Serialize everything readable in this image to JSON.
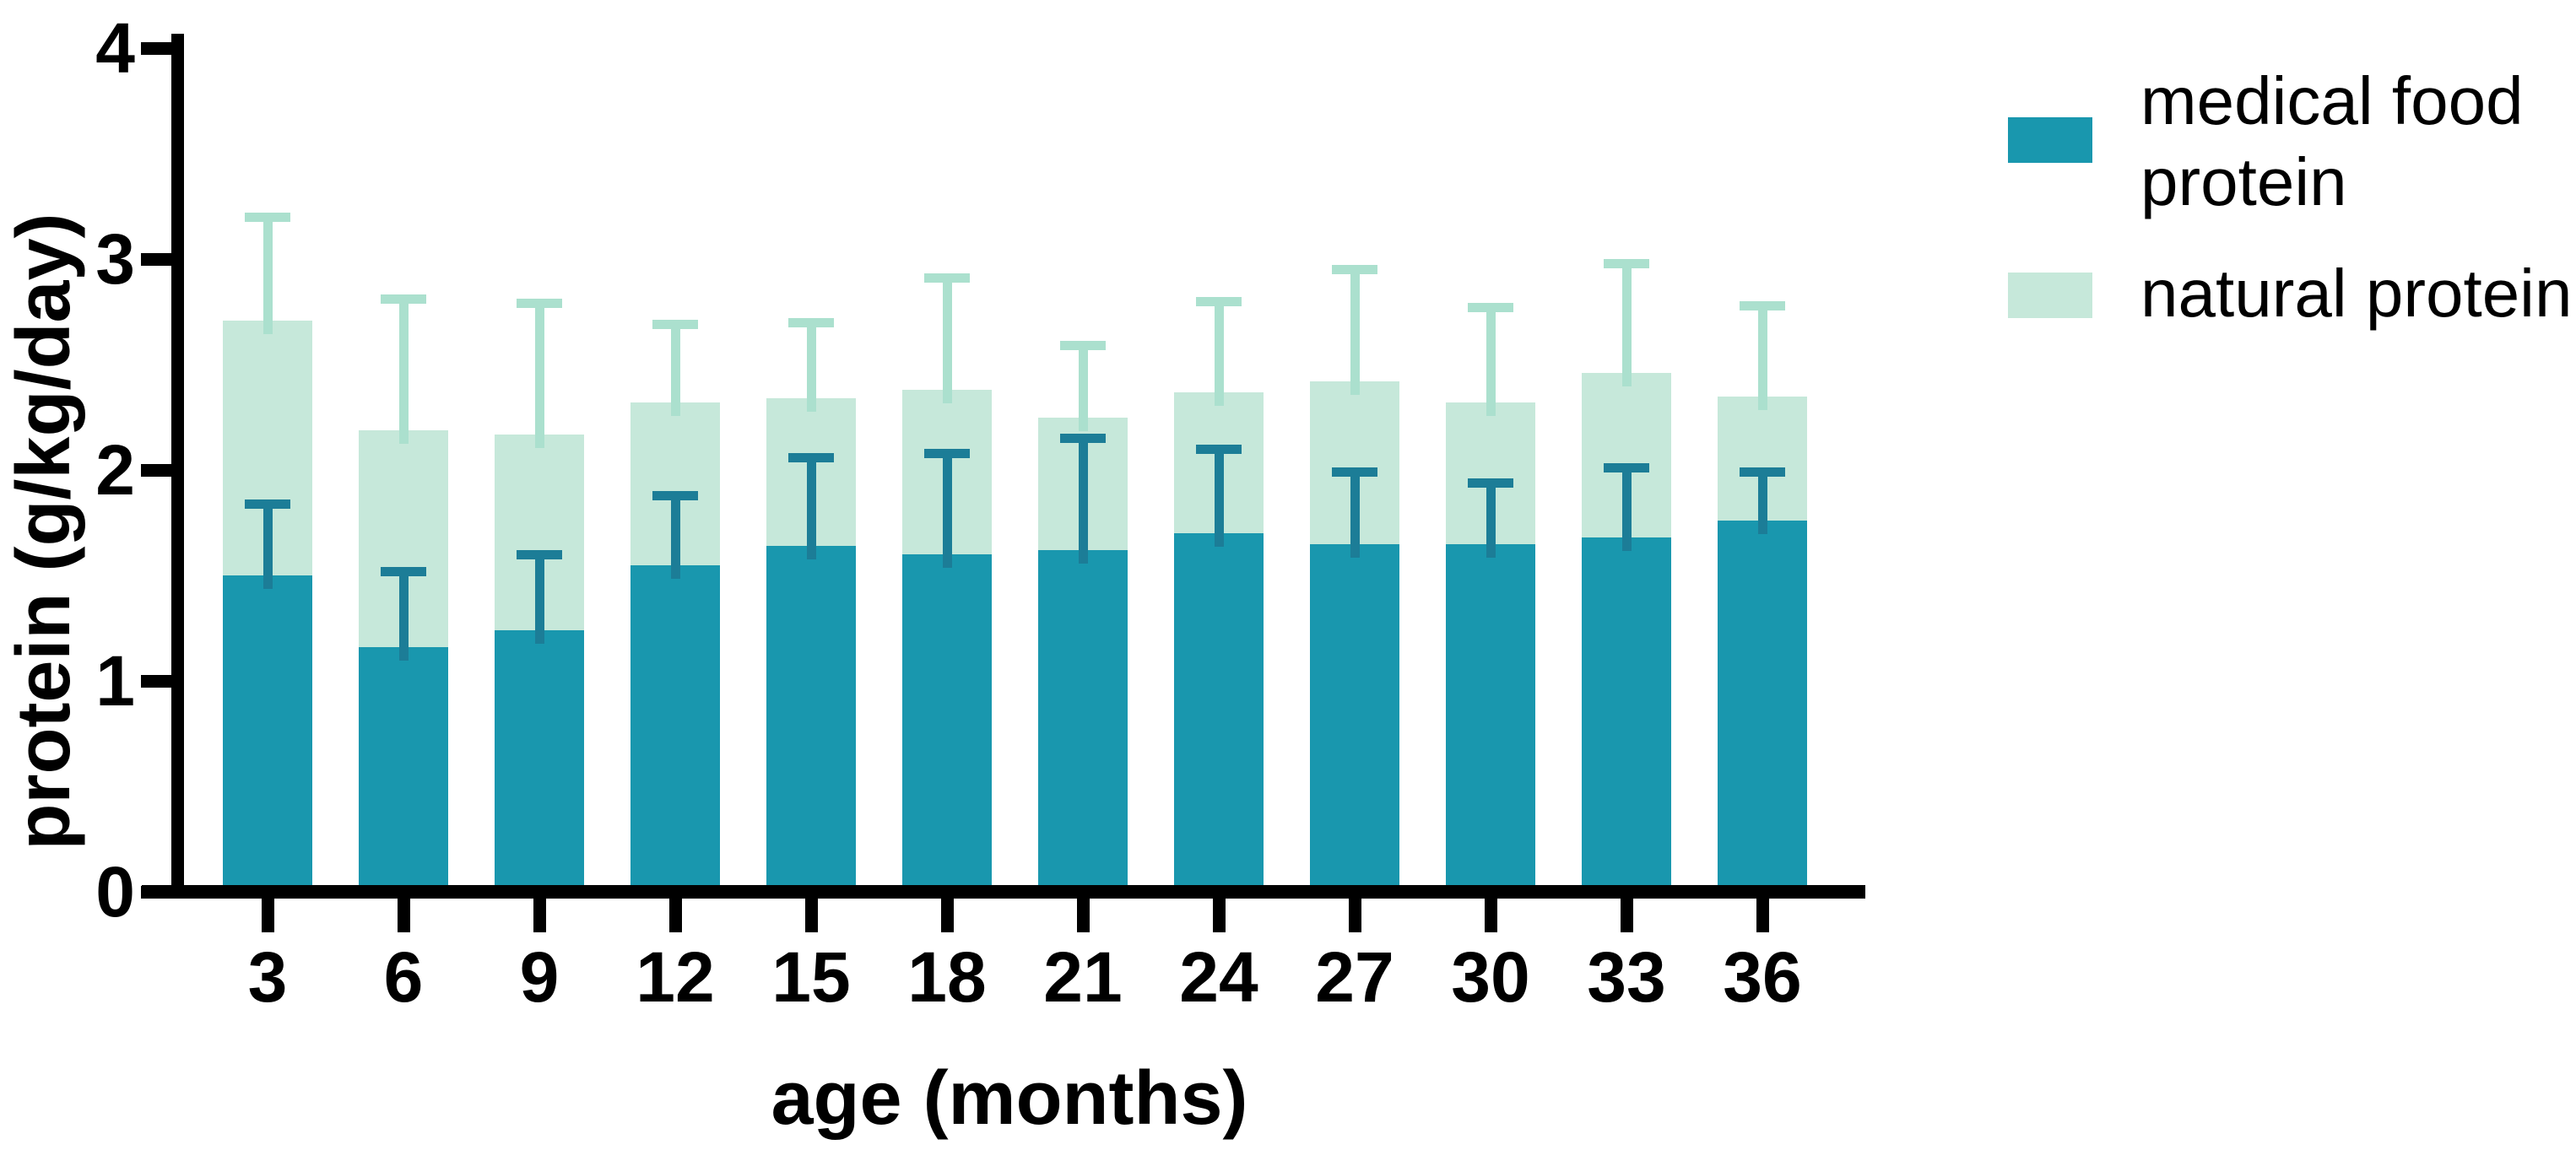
{
  "chart_data": {
    "type": "bar",
    "stacked": true,
    "title": "",
    "xlabel": "age (months)",
    "ylabel": "protein (g/kg/day)",
    "ylim": [
      0,
      4
    ],
    "yticks": [
      0,
      1,
      2,
      3,
      4
    ],
    "categories": [
      "3",
      "6",
      "9",
      "12",
      "15",
      "18",
      "21",
      "24",
      "27",
      "30",
      "33",
      "36"
    ],
    "grid": "off",
    "error_bars": "upper only; natural protein error bars rise from the top of the stacked bar",
    "series": [
      {
        "name": "medical food protein",
        "color": "#1997ae",
        "error_color": "#1c7d97",
        "values": [
          1.5,
          1.16,
          1.24,
          1.55,
          1.64,
          1.6,
          1.62,
          1.7,
          1.65,
          1.65,
          1.68,
          1.76
        ],
        "errors": [
          0.34,
          0.36,
          0.36,
          0.33,
          0.42,
          0.48,
          0.53,
          0.4,
          0.34,
          0.29,
          0.33,
          0.23
        ]
      },
      {
        "name": "natural protein",
        "color": "#c6e8da",
        "error_color": "#abe0ce",
        "values": [
          1.21,
          1.03,
          0.93,
          0.77,
          0.7,
          0.78,
          0.63,
          0.67,
          0.77,
          0.67,
          0.78,
          0.59
        ],
        "errors": [
          0.49,
          0.62,
          0.62,
          0.37,
          0.36,
          0.53,
          0.34,
          0.43,
          0.53,
          0.45,
          0.52,
          0.43
        ]
      }
    ],
    "stack_totals": [
      2.71,
      2.19,
      2.17,
      2.32,
      2.34,
      2.38,
      2.25,
      2.37,
      2.42,
      2.32,
      2.46,
      2.35
    ],
    "legend": {
      "position": "top-right",
      "entries": [
        {
          "series": "medical food protein",
          "lines": [
            "medical food",
            "protein"
          ]
        },
        {
          "series": "natural protein",
          "lines": [
            "natural protein"
          ]
        }
      ]
    },
    "axis_color": "#000000",
    "text_color": "#000000",
    "background_color": "#ffffff"
  }
}
